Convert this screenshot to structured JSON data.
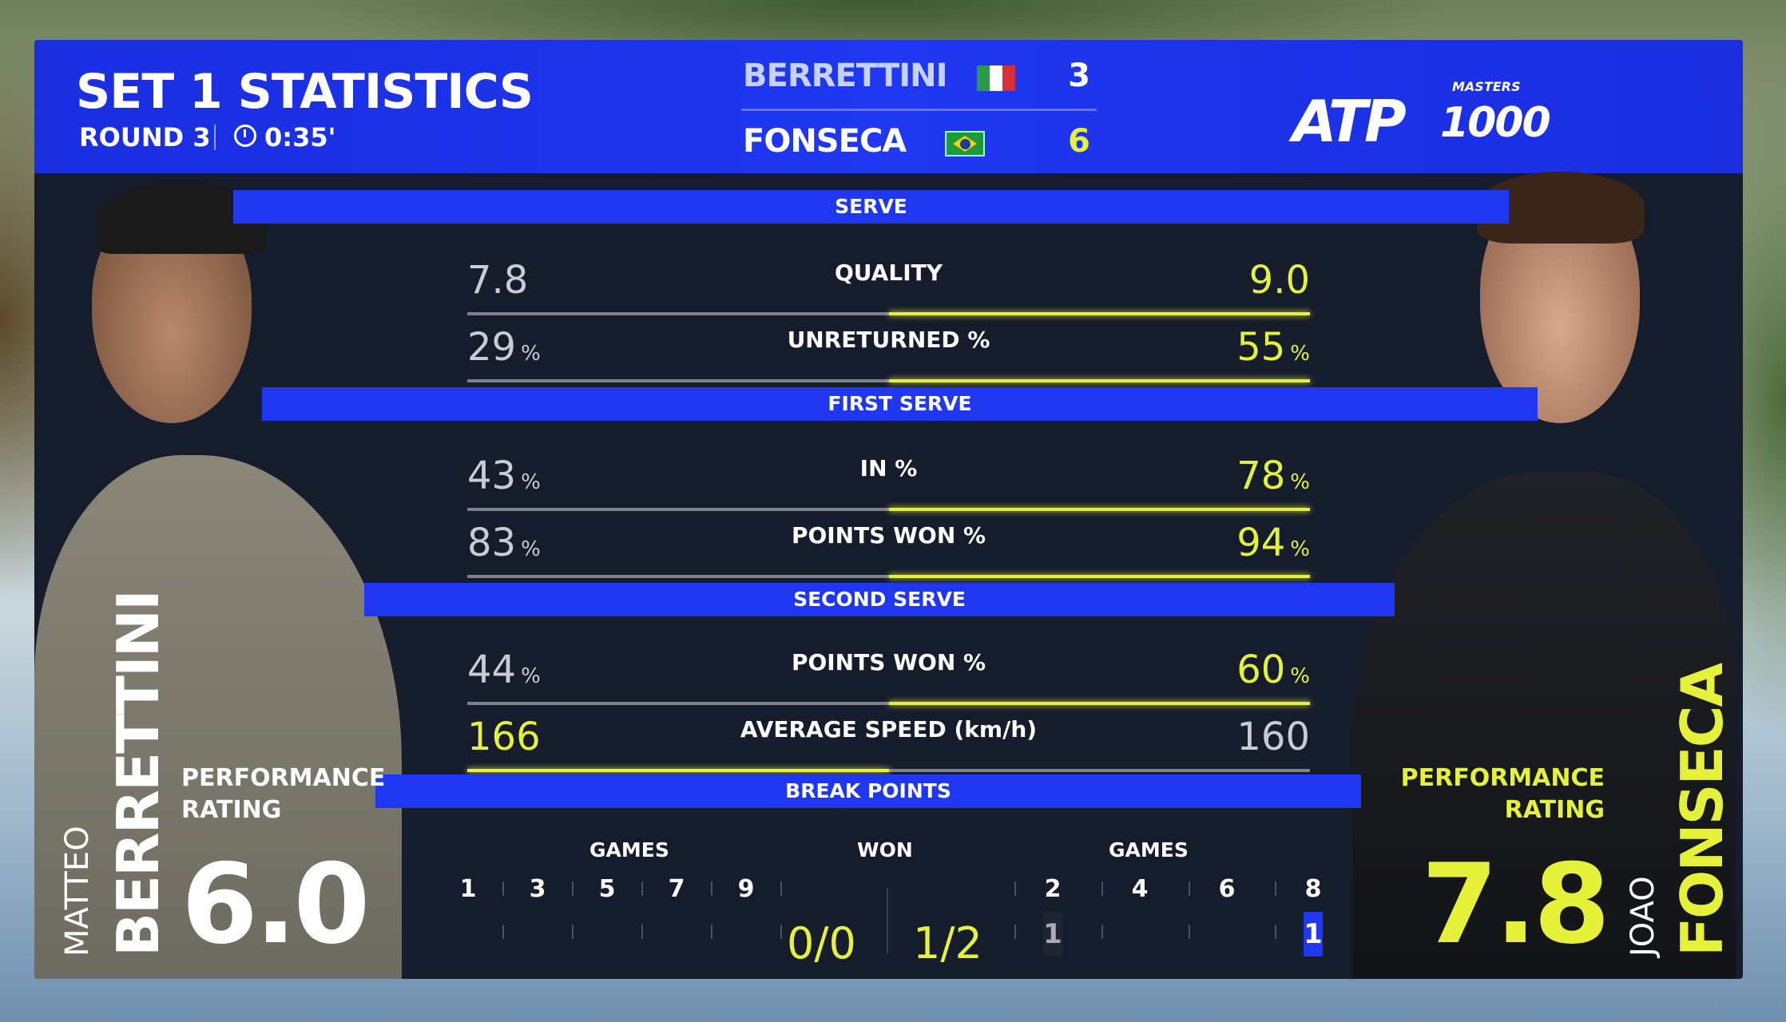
{
  "header": {
    "title": "SET 1 STATISTICS",
    "round": "ROUND 3",
    "duration": "0:35'",
    "logo": {
      "brand": "ATP",
      "tier_small": "MASTERS",
      "tier": "1000"
    }
  },
  "scoreboard": [
    {
      "name": "BERRETTINI",
      "flag": "Italy",
      "games": "3"
    },
    {
      "name": "FONSECA",
      "flag": "Brazil",
      "games": "6"
    }
  ],
  "sections": [
    {
      "title": "SERVE",
      "rows": [
        {
          "label": "QUALITY",
          "left": "7.8",
          "right": "9.0",
          "unit": "",
          "leader": "right"
        },
        {
          "label": "UNRETURNED %",
          "left": "29",
          "right": "55",
          "unit": "%",
          "leader": "right"
        }
      ]
    },
    {
      "title": "FIRST SERVE",
      "rows": [
        {
          "label": "IN %",
          "left": "43",
          "right": "78",
          "unit": "%",
          "leader": "right"
        },
        {
          "label": "POINTS WON %",
          "left": "83",
          "right": "94",
          "unit": "%",
          "leader": "right"
        }
      ]
    },
    {
      "title": "SECOND SERVE",
      "rows": [
        {
          "label": "POINTS WON %",
          "left": "44",
          "right": "60",
          "unit": "%",
          "leader": "right"
        },
        {
          "label": "AVERAGE SPEED (km/h)",
          "left": "166",
          "right": "160",
          "unit": "",
          "leader": "left"
        }
      ]
    }
  ],
  "break_points": {
    "title": "BREAK POINTS",
    "games_label": "GAMES",
    "won_label": "WON",
    "left_games": [
      "1",
      "3",
      "5",
      "7",
      "9"
    ],
    "right_games": [
      "2",
      "4",
      "6",
      "8"
    ],
    "left_won": "0/0",
    "right_won": "1/2",
    "right_marks": [
      {
        "game": "2",
        "value": "1",
        "converted": false
      },
      {
        "game": "8",
        "value": "1",
        "converted": true
      }
    ]
  },
  "left_player": {
    "first": "MATTEO",
    "last": "BERRETTINI",
    "rating_label_1": "PERFORMANCE",
    "rating_label_2": "RATING",
    "rating": "6.0"
  },
  "right_player": {
    "first": "JOAO",
    "last": "FONSECA",
    "rating_label_1": "PERFORMANCE",
    "rating_label_2": "RATING",
    "rating": "7.8"
  },
  "colors": {
    "accent_blue": "#1f37f0",
    "highlight_yellow": "#e6f23a",
    "panel": "#151c2c"
  }
}
